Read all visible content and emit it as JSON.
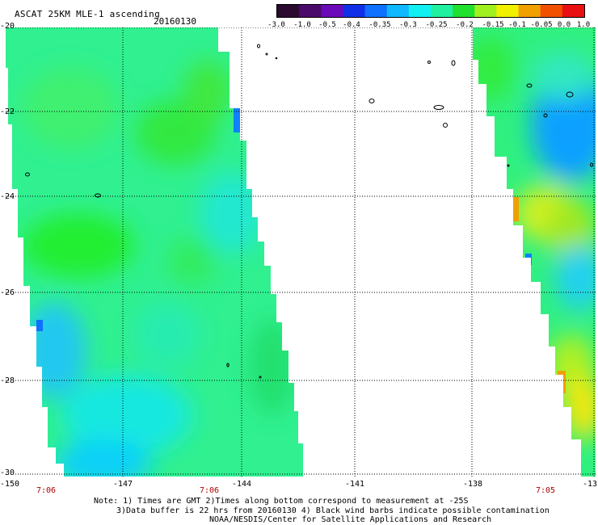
{
  "header": {
    "title": "ASCAT 25KM MLE-1 ascending",
    "date": "20160130"
  },
  "colorbar": {
    "labels": [
      "-3.0",
      "-1.0",
      "-0.5",
      "-0.4",
      "-0.35",
      "-0.3",
      "-0.25",
      "-0.2",
      "-0.15",
      "-0.1",
      "-0.05",
      "0.0",
      "1.0"
    ],
    "colors": [
      "#2a0a2e",
      "#4a0a6a",
      "#6a0ab8",
      "#1030e8",
      "#1070ff",
      "#10b8ff",
      "#10f0f0",
      "#20f0a0",
      "#20e030",
      "#a0f020",
      "#f0f000",
      "#f0a000",
      "#f05000",
      "#e81010"
    ]
  },
  "axes": {
    "lat_labels": [
      "-20",
      "-22",
      "-24",
      "-26",
      "-28",
      "-30"
    ],
    "lon_labels": [
      "-150",
      "-147",
      "-144",
      "-141",
      "-138",
      "-13"
    ]
  },
  "times": [
    "7:06",
    "7:06",
    "7:05"
  ],
  "notes": {
    "line1": "Note: 1) Times are GMT 2)Times along bottom correspond to measurement at -25S",
    "line2": "3)Data buffer is 22 hrs from 20160130 4) Black wind barbs indicate possible contamination",
    "line3": "NOAA/NESDIS/Center for Satellite Applications and Research"
  }
}
